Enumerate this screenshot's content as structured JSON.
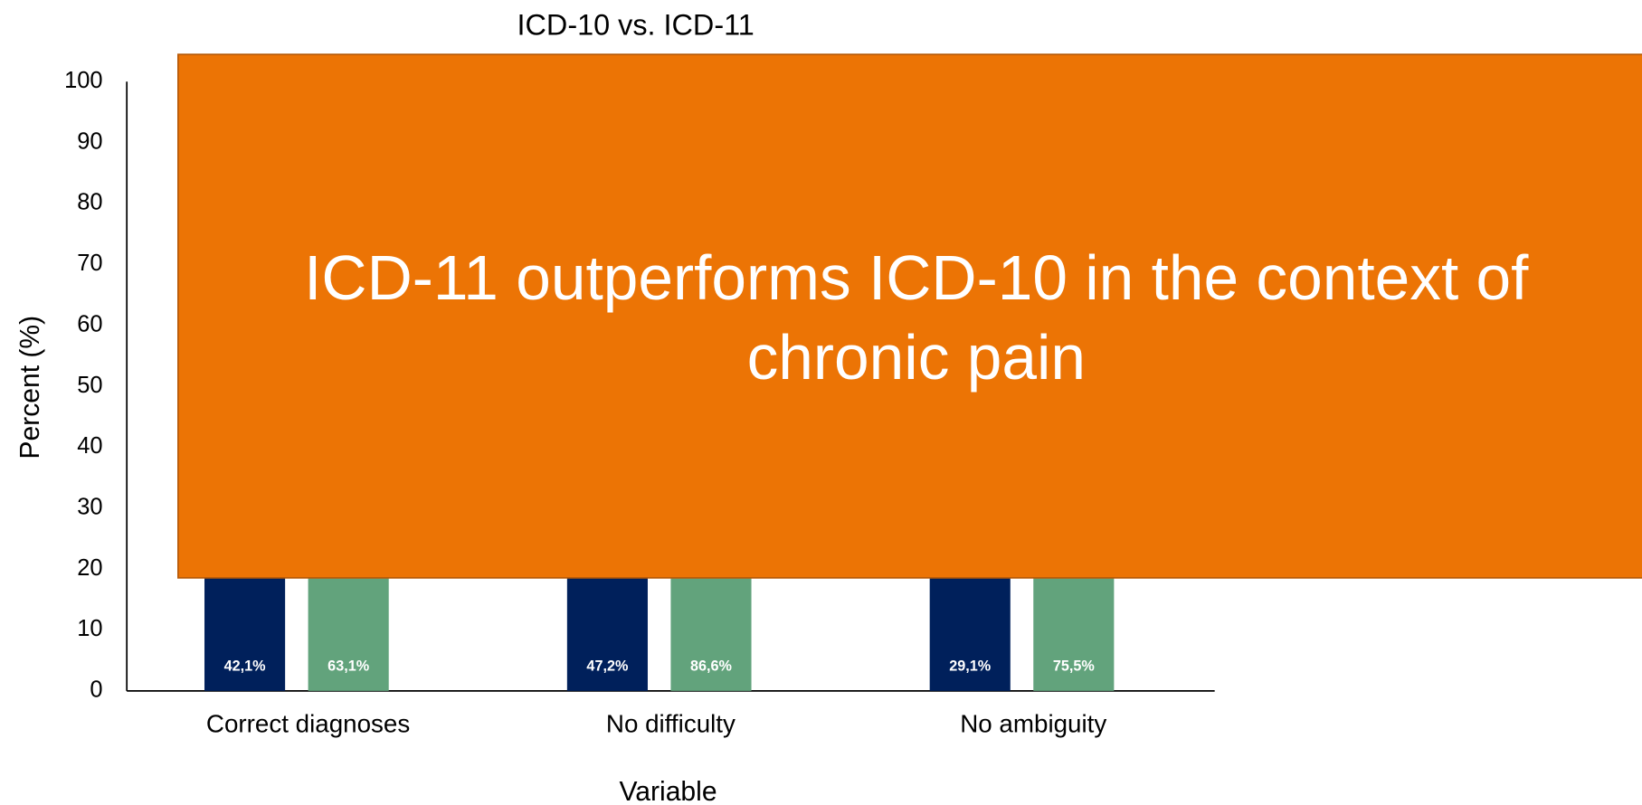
{
  "chart_data": {
    "type": "bar",
    "title": "ICD-10 vs. ICD-11",
    "x_label": "Variable",
    "y_label": "Percent (%)",
    "categories": [
      "Correct diagnoses",
      "No difficulty",
      "No ambiguity"
    ],
    "series": [
      {
        "color": "#00205b",
        "values": [
          42.1,
          47.2,
          29.1
        ],
        "value_labels": [
          "42,1%",
          "47,2%",
          "29,1%"
        ]
      },
      {
        "color": "#62a37c",
        "values": [
          63.1,
          86.6,
          75.5
        ],
        "value_labels": [
          "63,1%",
          "86,6%",
          "75,5%"
        ]
      }
    ],
    "ylim": [
      0,
      100
    ],
    "yticks": [
      0,
      10,
      20,
      30,
      40,
      50,
      60,
      70,
      80,
      90,
      100
    ],
    "grid": false,
    "annotation": {
      "lines": [
        "ICD-11 outperforms ICD-10 in the context of",
        "chronic pain"
      ],
      "color": "#ec7405"
    }
  }
}
